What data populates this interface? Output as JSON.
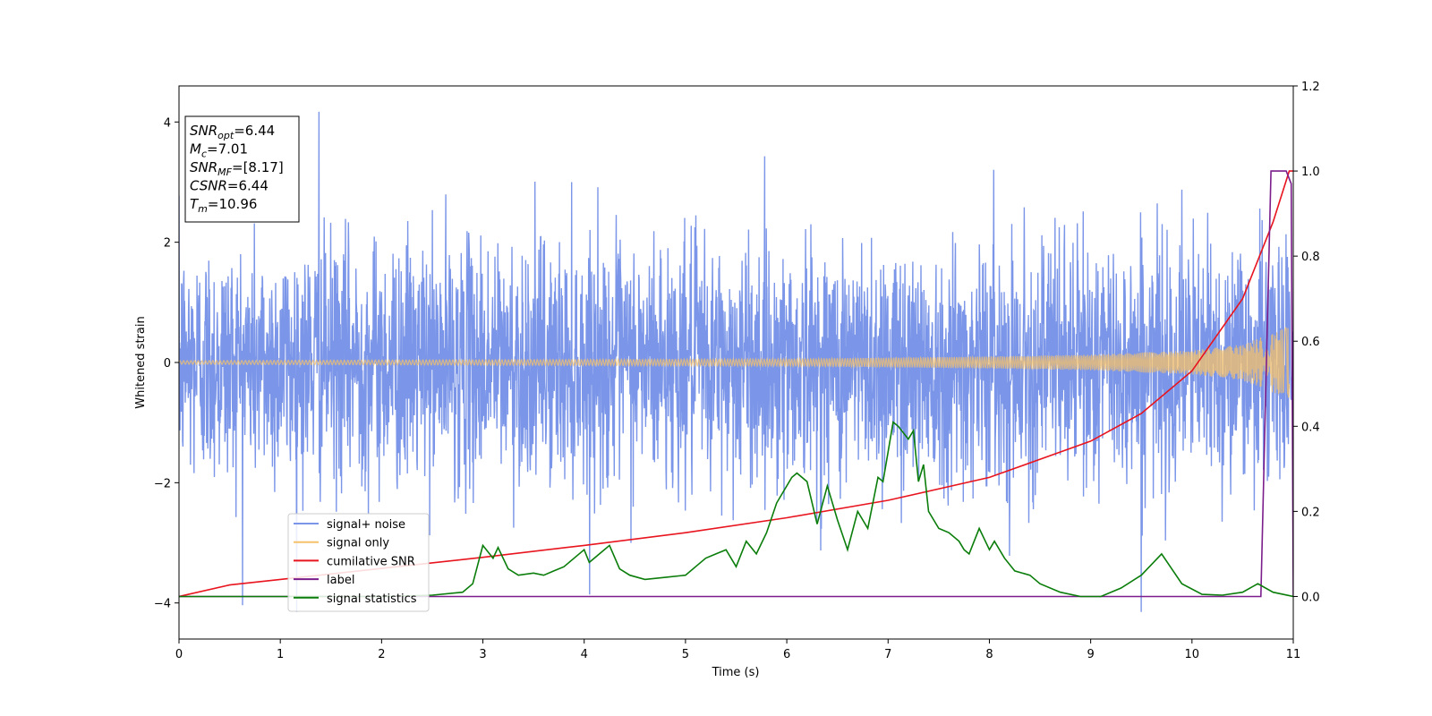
{
  "chart_data": {
    "type": "line",
    "title": "",
    "xlabel": "Time (s)",
    "ylabel": "Whitened strain",
    "xlim": [
      0,
      11
    ],
    "ylim": [
      -4.6,
      4.6
    ],
    "y2lim": [
      -0.1,
      1.2
    ],
    "xticks": [
      0,
      1,
      2,
      3,
      4,
      5,
      6,
      7,
      8,
      9,
      10,
      11
    ],
    "yticks": [
      -4,
      -2,
      0,
      2,
      4
    ],
    "y2ticks": [
      "0.0",
      "0.2",
      "0.4",
      "0.6",
      "0.8",
      "1.0",
      "1.2"
    ],
    "grid": false,
    "legend_placement": "lower-left",
    "info_box": [
      {
        "base": "SNR",
        "sub": "opt",
        "value": "=6.44"
      },
      {
        "base": "M",
        "sub": "c",
        "value": "=7.01"
      },
      {
        "base": "SNR",
        "sub": "MF",
        "value": "=[8.17]"
      },
      {
        "base": "CSNR",
        "sub": "",
        "value": "=6.44"
      },
      {
        "base": "T",
        "sub": "m",
        "value": "=10.96"
      }
    ],
    "series": [
      {
        "name": "signal+ noise",
        "axis": "left",
        "color": "#7b96e8",
        "kind": "noise",
        "typical_amplitude": 2.0,
        "peak_max": 4.17,
        "peak_min": -4.15
      },
      {
        "name": "signal only",
        "axis": "left",
        "color": "#f5c26b",
        "kind": "chirp",
        "envelope": {
          "x": [
            0,
            2,
            4,
            6,
            8,
            9,
            10,
            10.5,
            10.8,
            10.96
          ],
          "y": [
            0.03,
            0.04,
            0.05,
            0.06,
            0.1,
            0.13,
            0.2,
            0.3,
            0.5,
            0.6
          ]
        }
      },
      {
        "name": "cumilative SNR",
        "axis": "right",
        "color": "#e8141e",
        "x": [
          0,
          0.5,
          1,
          2,
          3,
          4,
          5,
          6,
          7,
          8,
          9,
          9.5,
          10,
          10.5,
          10.8,
          10.96,
          11
        ],
        "y": [
          0.0,
          0.027,
          0.04,
          0.066,
          0.092,
          0.12,
          0.15,
          0.185,
          0.226,
          0.28,
          0.365,
          0.43,
          0.53,
          0.7,
          0.88,
          1.0,
          1.0
        ]
      },
      {
        "name": "label",
        "axis": "right",
        "color": "#7b1e8c",
        "x": [
          0,
          10.68,
          10.78,
          10.93,
          10.98,
          11.0
        ],
        "y": [
          0,
          0,
          1,
          1,
          0.97,
          0
        ]
      },
      {
        "name": "signal statistics",
        "axis": "right",
        "color": "#0a7d0a",
        "x": [
          0,
          1,
          2,
          2.5,
          2.8,
          2.9,
          3.0,
          3.1,
          3.15,
          3.25,
          3.35,
          3.5,
          3.6,
          3.7,
          3.8,
          3.9,
          4.0,
          4.05,
          4.15,
          4.25,
          4.35,
          4.45,
          4.6,
          4.8,
          5.0,
          5.1,
          5.2,
          5.3,
          5.4,
          5.5,
          5.6,
          5.7,
          5.8,
          5.9,
          6.0,
          6.05,
          6.1,
          6.2,
          6.3,
          6.4,
          6.5,
          6.6,
          6.7,
          6.8,
          6.9,
          6.95,
          7.0,
          7.05,
          7.1,
          7.2,
          7.25,
          7.3,
          7.35,
          7.4,
          7.5,
          7.6,
          7.7,
          7.75,
          7.8,
          7.9,
          8.0,
          8.05,
          8.15,
          8.25,
          8.4,
          8.5,
          8.7,
          8.9,
          9.1,
          9.3,
          9.5,
          9.7,
          9.9,
          10.1,
          10.3,
          10.5,
          10.65,
          10.8,
          11.0
        ],
        "y": [
          0.0,
          0.0,
          0.0,
          0.003,
          0.01,
          0.03,
          0.12,
          0.09,
          0.115,
          0.065,
          0.05,
          0.055,
          0.05,
          0.06,
          0.07,
          0.09,
          0.11,
          0.08,
          0.1,
          0.12,
          0.065,
          0.05,
          0.04,
          0.045,
          0.05,
          0.07,
          0.09,
          0.1,
          0.11,
          0.07,
          0.13,
          0.1,
          0.15,
          0.22,
          0.26,
          0.28,
          0.29,
          0.27,
          0.17,
          0.26,
          0.18,
          0.11,
          0.2,
          0.16,
          0.28,
          0.27,
          0.34,
          0.41,
          0.4,
          0.37,
          0.39,
          0.27,
          0.31,
          0.2,
          0.16,
          0.15,
          0.13,
          0.11,
          0.1,
          0.16,
          0.11,
          0.13,
          0.09,
          0.06,
          0.05,
          0.03,
          0.01,
          0.0,
          0.0,
          0.02,
          0.05,
          0.1,
          0.03,
          0.005,
          0.003,
          0.01,
          0.03,
          0.01,
          0.0
        ]
      }
    ]
  }
}
